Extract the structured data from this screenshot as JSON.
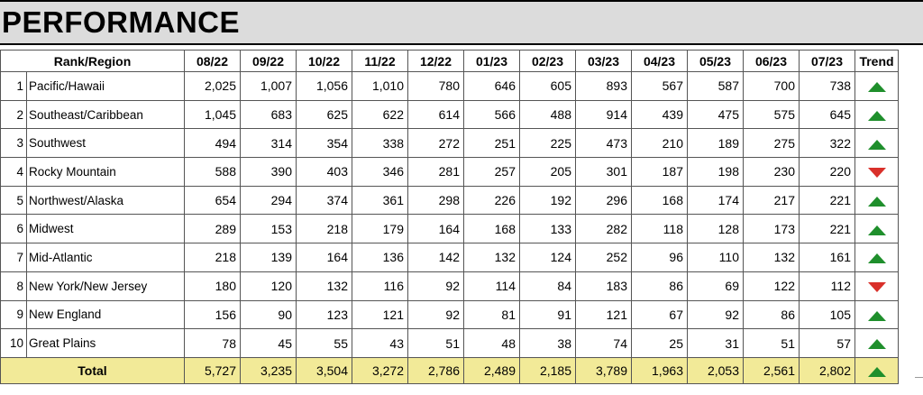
{
  "title": "PERFORMANCE",
  "headers": {
    "rank_region": "Rank/Region",
    "months": [
      "08/22",
      "09/22",
      "10/22",
      "11/22",
      "12/22",
      "01/23",
      "02/23",
      "03/23",
      "04/23",
      "05/23",
      "06/23",
      "07/23"
    ],
    "trend": "Trend"
  },
  "rows": [
    {
      "rank": "1",
      "region": "Pacific/Hawaii",
      "values": [
        "2,025",
        "1,007",
        "1,056",
        "1,010",
        "780",
        "646",
        "605",
        "893",
        "567",
        "587",
        "700",
        "738"
      ],
      "trend": "up"
    },
    {
      "rank": "2",
      "region": "Southeast/Caribbean",
      "values": [
        "1,045",
        "683",
        "625",
        "622",
        "614",
        "566",
        "488",
        "914",
        "439",
        "475",
        "575",
        "645"
      ],
      "trend": "up"
    },
    {
      "rank": "3",
      "region": "Southwest",
      "values": [
        "494",
        "314",
        "354",
        "338",
        "272",
        "251",
        "225",
        "473",
        "210",
        "189",
        "275",
        "322"
      ],
      "trend": "up"
    },
    {
      "rank": "4",
      "region": "Rocky Mountain",
      "values": [
        "588",
        "390",
        "403",
        "346",
        "281",
        "257",
        "205",
        "301",
        "187",
        "198",
        "230",
        "220"
      ],
      "trend": "down"
    },
    {
      "rank": "5",
      "region": "Northwest/Alaska",
      "values": [
        "654",
        "294",
        "374",
        "361",
        "298",
        "226",
        "192",
        "296",
        "168",
        "174",
        "217",
        "221"
      ],
      "trend": "up"
    },
    {
      "rank": "6",
      "region": "Midwest",
      "values": [
        "289",
        "153",
        "218",
        "179",
        "164",
        "168",
        "133",
        "282",
        "118",
        "128",
        "173",
        "221"
      ],
      "trend": "up"
    },
    {
      "rank": "7",
      "region": "Mid-Atlantic",
      "values": [
        "218",
        "139",
        "164",
        "136",
        "142",
        "132",
        "124",
        "252",
        "96",
        "110",
        "132",
        "161"
      ],
      "trend": "up"
    },
    {
      "rank": "8",
      "region": "New York/New Jersey",
      "values": [
        "180",
        "120",
        "132",
        "116",
        "92",
        "114",
        "84",
        "183",
        "86",
        "69",
        "122",
        "112"
      ],
      "trend": "down"
    },
    {
      "rank": "9",
      "region": "New England",
      "values": [
        "156",
        "90",
        "123",
        "121",
        "92",
        "81",
        "91",
        "121",
        "67",
        "92",
        "86",
        "105"
      ],
      "trend": "up"
    },
    {
      "rank": "10",
      "region": "Great Plains",
      "values": [
        "78",
        "45",
        "55",
        "43",
        "51",
        "48",
        "38",
        "74",
        "25",
        "31",
        "51",
        "57"
      ],
      "trend": "up"
    }
  ],
  "total": {
    "label": "Total",
    "values": [
      "5,727",
      "3,235",
      "3,504",
      "3,272",
      "2,786",
      "2,489",
      "2,185",
      "3,789",
      "1,963",
      "2,053",
      "2,561",
      "2,802"
    ],
    "trend": "up"
  },
  "colors": {
    "trend_up": "#1f8f2c",
    "trend_down": "#d9302a",
    "total_row": "#f2ea98",
    "title_bar": "#dcdcdc"
  }
}
